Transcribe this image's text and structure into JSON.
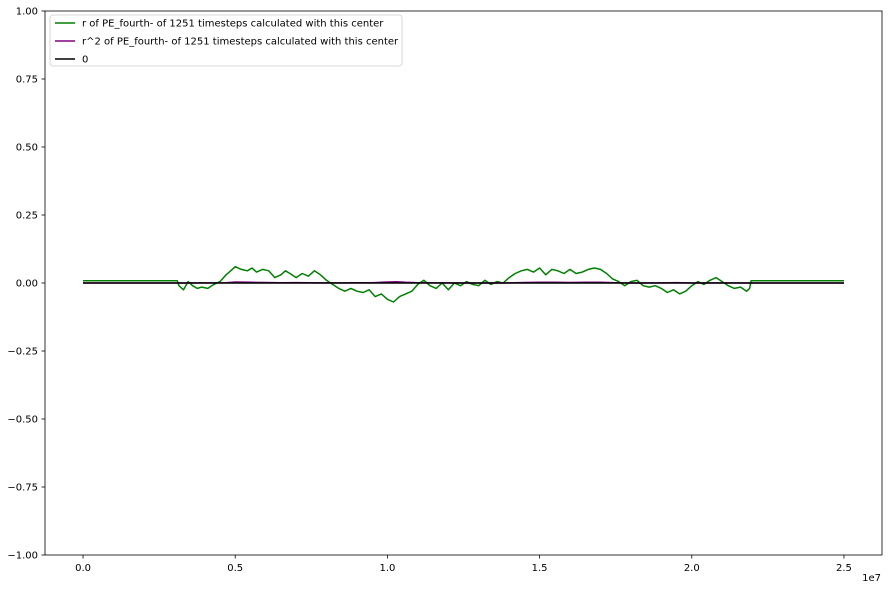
{
  "chart_data": {
    "type": "line",
    "title": "",
    "xlabel": "",
    "ylabel": "",
    "x_offset_text": "1e7",
    "xlim": [
      -1250000,
      26250000
    ],
    "ylim": [
      -1.0,
      1.0
    ],
    "grid": false,
    "legend_position": "top-left",
    "x_ticks": [
      {
        "value": 0,
        "label": "0.0"
      },
      {
        "value": 5000000,
        "label": "0.5"
      },
      {
        "value": 10000000,
        "label": "1.0"
      },
      {
        "value": 15000000,
        "label": "1.5"
      },
      {
        "value": 20000000,
        "label": "2.0"
      },
      {
        "value": 25000000,
        "label": "2.5"
      }
    ],
    "y_ticks": [
      {
        "value": -1.0,
        "label": "−1.00"
      },
      {
        "value": -0.75,
        "label": "−0.75"
      },
      {
        "value": -0.5,
        "label": "−0.50"
      },
      {
        "value": -0.25,
        "label": "−0.25"
      },
      {
        "value": 0.0,
        "label": "0.00"
      },
      {
        "value": 0.25,
        "label": "0.25"
      },
      {
        "value": 0.5,
        "label": "0.50"
      },
      {
        "value": 0.75,
        "label": "0.75"
      },
      {
        "value": 1.0,
        "label": "1.00"
      }
    ],
    "series": [
      {
        "name": "r of PE_fourth- of 1251 timesteps calculated with this center",
        "color": "#008000",
        "x": [
          0,
          3100000,
          3150000,
          3300000,
          3450000,
          3600000,
          3750000,
          3900000,
          4100000,
          4300000,
          4500000,
          4700000,
          4850000,
          5000000,
          5200000,
          5400000,
          5550000,
          5700000,
          5900000,
          6100000,
          6300000,
          6500000,
          6650000,
          6800000,
          7000000,
          7200000,
          7400000,
          7600000,
          7800000,
          8000000,
          8200000,
          8400000,
          8600000,
          8800000,
          9000000,
          9200000,
          9400000,
          9600000,
          9800000,
          10000000,
          10200000,
          10400000,
          10600000,
          10800000,
          11000000,
          11200000,
          11400000,
          11600000,
          11800000,
          12000000,
          12200000,
          12400000,
          12600000,
          12800000,
          13000000,
          13200000,
          13400000,
          13600000,
          13800000,
          14000000,
          14200000,
          14400000,
          14600000,
          14800000,
          15000000,
          15200000,
          15400000,
          15600000,
          15800000,
          16000000,
          16200000,
          16400000,
          16600000,
          16800000,
          17000000,
          17200000,
          17400000,
          17600000,
          17800000,
          18000000,
          18200000,
          18400000,
          18600000,
          18800000,
          19000000,
          19200000,
          19400000,
          19600000,
          19800000,
          20000000,
          20200000,
          20400000,
          20600000,
          20800000,
          21000000,
          21200000,
          21400000,
          21600000,
          21800000,
          21900000,
          21950000,
          25000000
        ],
        "y": [
          0.008,
          0.008,
          -0.01,
          -0.025,
          0.005,
          -0.01,
          -0.02,
          -0.015,
          -0.02,
          -0.005,
          0.005,
          0.03,
          0.045,
          0.06,
          0.05,
          0.045,
          0.055,
          0.04,
          0.05,
          0.045,
          0.02,
          0.03,
          0.045,
          0.035,
          0.02,
          0.035,
          0.025,
          0.045,
          0.03,
          0.01,
          -0.005,
          -0.02,
          -0.03,
          -0.02,
          -0.03,
          -0.035,
          -0.025,
          -0.05,
          -0.04,
          -0.06,
          -0.07,
          -0.05,
          -0.04,
          -0.03,
          -0.005,
          0.01,
          -0.01,
          -0.02,
          0.0,
          -0.025,
          0.0,
          -0.01,
          0.005,
          -0.005,
          -0.01,
          0.01,
          -0.005,
          0.005,
          0.0,
          0.02,
          0.035,
          0.045,
          0.05,
          0.04,
          0.055,
          0.03,
          0.05,
          0.045,
          0.035,
          0.05,
          0.035,
          0.04,
          0.05,
          0.055,
          0.05,
          0.035,
          0.015,
          0.005,
          -0.01,
          0.005,
          0.01,
          -0.01,
          -0.015,
          -0.01,
          -0.02,
          -0.035,
          -0.025,
          -0.04,
          -0.03,
          -0.01,
          0.005,
          -0.005,
          0.01,
          0.02,
          0.005,
          -0.01,
          -0.02,
          -0.015,
          -0.03,
          -0.02,
          0.008,
          0.008
        ]
      },
      {
        "name": "r^2 of PE_fourth- of 1251 timesteps calculated with this center",
        "color": "#800080",
        "x": [
          0,
          3100000,
          4700000,
          5000000,
          5500000,
          6000000,
          6500000,
          7000000,
          7500000,
          8000000,
          8500000,
          9000000,
          9500000,
          10000000,
          10300000,
          10600000,
          11000000,
          12000000,
          13000000,
          14000000,
          14500000,
          15000000,
          15500000,
          16000000,
          16500000,
          17000000,
          17500000,
          18000000,
          19000000,
          19500000,
          20000000,
          21000000,
          21900000,
          25000000
        ],
        "y": [
          0.0001,
          0.0001,
          0.0009,
          0.0036,
          0.0025,
          0.002,
          0.0009,
          0.0015,
          0.0012,
          0.0004,
          0.0004,
          0.0009,
          0.0012,
          0.0036,
          0.0049,
          0.0025,
          0.0009,
          0.0004,
          0.0001,
          0.0004,
          0.002,
          0.003,
          0.0025,
          0.002,
          0.0025,
          0.003,
          0.001,
          0.0001,
          0.0004,
          0.0016,
          0.0001,
          0.0004,
          0.0001,
          0.0001
        ]
      },
      {
        "name": "0",
        "color": "#000000",
        "x": [
          0,
          25000000
        ],
        "y": [
          0,
          0
        ]
      }
    ]
  }
}
